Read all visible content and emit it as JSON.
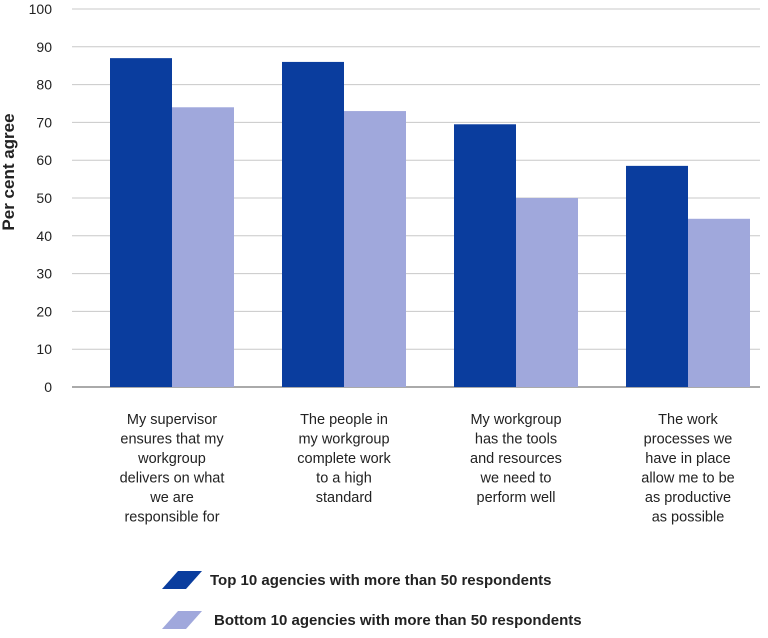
{
  "chart_data": {
    "type": "bar",
    "categories": [
      [
        "My supervisor",
        "ensures that my",
        "workgroup",
        "delivers on what",
        "we are",
        "responsible for"
      ],
      [
        "The people in",
        "my workgroup",
        "complete work",
        "to a high",
        "standard"
      ],
      [
        "My workgroup",
        "has the tools",
        "and resources",
        "we need to",
        "perform well"
      ],
      [
        "The work",
        "processes we",
        "have in place",
        "allow me to be",
        "as productive",
        "as possible"
      ]
    ],
    "series": [
      {
        "name": "Top 10 agencies with more than 50 respondents",
        "color": "#0a3d9e",
        "values": [
          87,
          86,
          69.5,
          58.5
        ]
      },
      {
        "name": "Bottom 10 agencies with more than 50 respondents",
        "color": "#a0a8dc",
        "values": [
          74,
          73,
          50,
          44.5
        ]
      }
    ],
    "ylabel": "Per cent agree",
    "ylim": [
      0,
      100
    ],
    "yticks": [
      "0",
      "10",
      "20",
      "30",
      "40",
      "50",
      "60",
      "70",
      "80",
      "90",
      "100"
    ],
    "grid": true,
    "legend_position": "bottom"
  }
}
